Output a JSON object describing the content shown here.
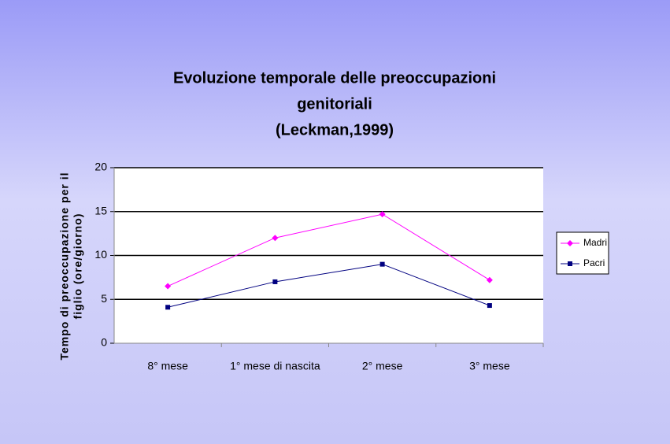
{
  "chart_data": {
    "type": "line",
    "title": [
      "Evoluzione temporale delle preoccupazioni",
      "genitoriali",
      "(Leckman,1999)"
    ],
    "y_label": [
      "Tempo di preoccupazione per il",
      "figlio (ore/giorno)"
    ],
    "categories": [
      "8° mese",
      "1° mese di nascita",
      "2° mese",
      "3° mese"
    ],
    "series": [
      {
        "name": "Madri",
        "color": "#ff00ff",
        "marker": "diamond",
        "values": [
          6.5,
          12,
          14.7,
          7.2
        ]
      },
      {
        "name": "Pacri",
        "color": "#000080",
        "marker": "square",
        "values": [
          4.1,
          7,
          9,
          4.3
        ]
      }
    ],
    "ylim": [
      0,
      20
    ],
    "yticks": [
      0,
      5,
      10,
      15,
      20
    ],
    "grid": true,
    "legend": "right"
  }
}
